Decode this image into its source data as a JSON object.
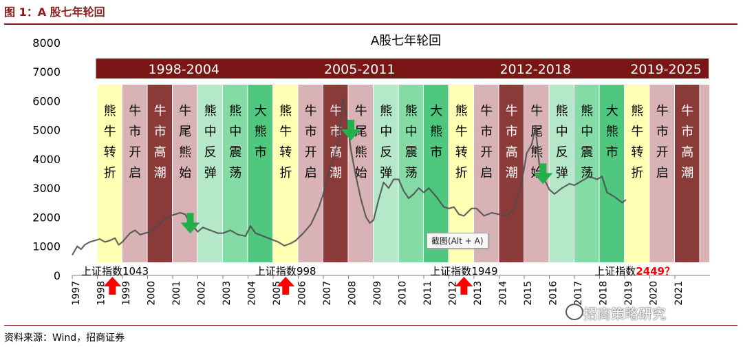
{
  "figure": {
    "title": "图 1：A 股七年轮回",
    "source": "资料来源：Wind，招商证券",
    "watermark": "招商策略研究",
    "tooltip": "截图(Alt + A)"
  },
  "colors": {
    "header_bar": "#7b1616",
    "line": "#4b4b4b",
    "up_arrow": "#ff0000",
    "down_arrow": "#22b04b",
    "phase": {
      "熊牛转折": "#ffffb3",
      "牛市开启": "#d8b2b4",
      "牛市高潮": "#8b3a3a",
      "牛尾熊始": "#d8b2b4",
      "熊中反弹": "#b5e8c8",
      "熊中震荡": "#84dba6",
      "大熊市": "#4fc77f"
    }
  },
  "chart_data": {
    "type": "line",
    "title": "A股七年轮回",
    "ylim": [
      0,
      8000
    ],
    "yticks": [
      0,
      1000,
      2000,
      3000,
      4000,
      5000,
      6000,
      7000,
      8000
    ],
    "xlim": [
      1997,
      2022
    ],
    "xticks": [
      "1997",
      "1998",
      "1999",
      "2000",
      "2001",
      "2002",
      "2003",
      "2004",
      "2005",
      "2006",
      "2007",
      "2008",
      "2009",
      "2010",
      "2011",
      "2012",
      "2013",
      "2014",
      "2015",
      "2016",
      "2017",
      "2018",
      "2019",
      "2020",
      "2021"
    ],
    "cycles": [
      {
        "label": "1998-2004",
        "start": 1998,
        "end": 2005
      },
      {
        "label": "2005-2011",
        "start": 2005,
        "end": 2012
      },
      {
        "label": "2012-2018",
        "start": 2012,
        "end": 2019
      },
      {
        "label": "2019-2025",
        "start": 2019,
        "end": 2022.4
      }
    ],
    "phases": [
      {
        "label": "熊牛转折",
        "start": 1998,
        "end": 1999
      },
      {
        "label": "牛市开启",
        "start": 1999,
        "end": 2000
      },
      {
        "label": "牛市高潮",
        "start": 2000,
        "end": 2001
      },
      {
        "label": "牛尾熊始",
        "start": 2001,
        "end": 2002
      },
      {
        "label": "熊中反弹",
        "start": 2002,
        "end": 2003
      },
      {
        "label": "熊中震荡",
        "start": 2003,
        "end": 2004
      },
      {
        "label": "大熊市",
        "start": 2004,
        "end": 2005
      },
      {
        "label": "熊牛转折",
        "start": 2005,
        "end": 2006
      },
      {
        "label": "牛市开启",
        "start": 2006,
        "end": 2007
      },
      {
        "label": "牛市高潮",
        "start": 2007,
        "end": 2008
      },
      {
        "label": "牛尾熊始",
        "start": 2008,
        "end": 2009
      },
      {
        "label": "熊中反弹",
        "start": 2009,
        "end": 2010
      },
      {
        "label": "熊中震荡",
        "start": 2010,
        "end": 2011
      },
      {
        "label": "大熊市",
        "start": 2011,
        "end": 2012
      },
      {
        "label": "熊牛转折",
        "start": 2012,
        "end": 2013
      },
      {
        "label": "牛市开启",
        "start": 2013,
        "end": 2014
      },
      {
        "label": "牛市高潮",
        "start": 2014,
        "end": 2015
      },
      {
        "label": "牛尾熊始",
        "start": 2015,
        "end": 2016
      },
      {
        "label": "熊中反弹",
        "start": 2016,
        "end": 2017
      },
      {
        "label": "熊中震荡",
        "start": 2017,
        "end": 2018
      },
      {
        "label": "大熊市",
        "start": 2018,
        "end": 2019
      },
      {
        "label": "熊牛转折",
        "start": 2019,
        "end": 2020
      },
      {
        "label": "牛市开启",
        "start": 2020,
        "end": 2021
      },
      {
        "label": "牛市高潮",
        "start": 2021,
        "end": 2022
      },
      {
        "label": "",
        "start": 2022,
        "end": 2022.4
      }
    ],
    "series": [
      {
        "x": [
          1997.0,
          1997.2,
          1997.35,
          1997.5,
          1997.7,
          1997.9,
          1998.1,
          1998.3,
          1998.5,
          1998.7,
          1998.85,
          1999.0,
          1999.3,
          1999.5,
          1999.7,
          1999.9,
          2000.1,
          2000.4,
          2000.7,
          2000.9,
          2001.1,
          2001.3,
          2001.5,
          2001.7,
          2001.85,
          2002.0,
          2002.2,
          2002.5,
          2002.8,
          2003.0,
          2003.3,
          2003.6,
          2003.9,
          2004.1,
          2004.3,
          2004.6,
          2004.9,
          2005.2,
          2005.45,
          2005.7,
          2005.9,
          2006.2,
          2006.5,
          2006.8,
          2007.0,
          2007.2,
          2007.4,
          2007.6,
          2007.78,
          2007.95,
          2008.1,
          2008.3,
          2008.5,
          2008.7,
          2008.85,
          2009.0,
          2009.2,
          2009.4,
          2009.6,
          2009.8,
          2010.0,
          2010.2,
          2010.4,
          2010.6,
          2010.8,
          2011.0,
          2011.2,
          2011.5,
          2011.8,
          2012.0,
          2012.2,
          2012.4,
          2012.6,
          2012.9,
          2013.1,
          2013.4,
          2013.7,
          2014.0,
          2014.3,
          2014.6,
          2014.9,
          2015.1,
          2015.3,
          2015.45,
          2015.6,
          2015.8,
          2016.0,
          2016.2,
          2016.5,
          2016.8,
          2017.0,
          2017.3,
          2017.6,
          2017.9,
          2018.1,
          2018.3,
          2018.6,
          2018.9,
          2019.05
        ],
        "y": [
          700,
          1000,
          900,
          1050,
          1150,
          1200,
          1250,
          1150,
          1200,
          1280,
          1050,
          1150,
          1450,
          1550,
          1400,
          1450,
          1500,
          1700,
          1950,
          2050,
          2100,
          2150,
          2100,
          1750,
          1650,
          1500,
          1650,
          1550,
          1450,
          1450,
          1550,
          1400,
          1350,
          1700,
          1450,
          1350,
          1250,
          1150,
          1020,
          1100,
          1200,
          1450,
          1750,
          2300,
          2800,
          3500,
          4000,
          4600,
          6100,
          5300,
          4300,
          3400,
          2600,
          2000,
          1800,
          1900,
          2600,
          3200,
          3000,
          3300,
          3300,
          2900,
          2650,
          2800,
          3000,
          2850,
          3000,
          2700,
          2350,
          2300,
          2350,
          2100,
          2050,
          2300,
          2300,
          2050,
          2150,
          2100,
          2050,
          2300,
          3200,
          4200,
          4500,
          5100,
          3800,
          3300,
          2950,
          2800,
          3000,
          3150,
          3100,
          3250,
          3400,
          3300,
          3400,
          2850,
          2700,
          2500,
          2600
        ]
      }
    ],
    "index_labels": [
      {
        "prefix": "上证指数",
        "value": "1043",
        "x": 1998.7
      },
      {
        "prefix": "上证指数",
        "value": "998",
        "x": 2005.5
      },
      {
        "prefix": "上证指数",
        "value": "1949",
        "x": 2012.6
      },
      {
        "prefix": "上证指数",
        "value": "2449？",
        "x": 2019.4
      }
    ],
    "up_arrows_x": [
      1998.6,
      2005.5,
      2012.6
    ],
    "down_arrows_x": [
      2001.7,
      2008.1,
      2015.75
    ]
  }
}
